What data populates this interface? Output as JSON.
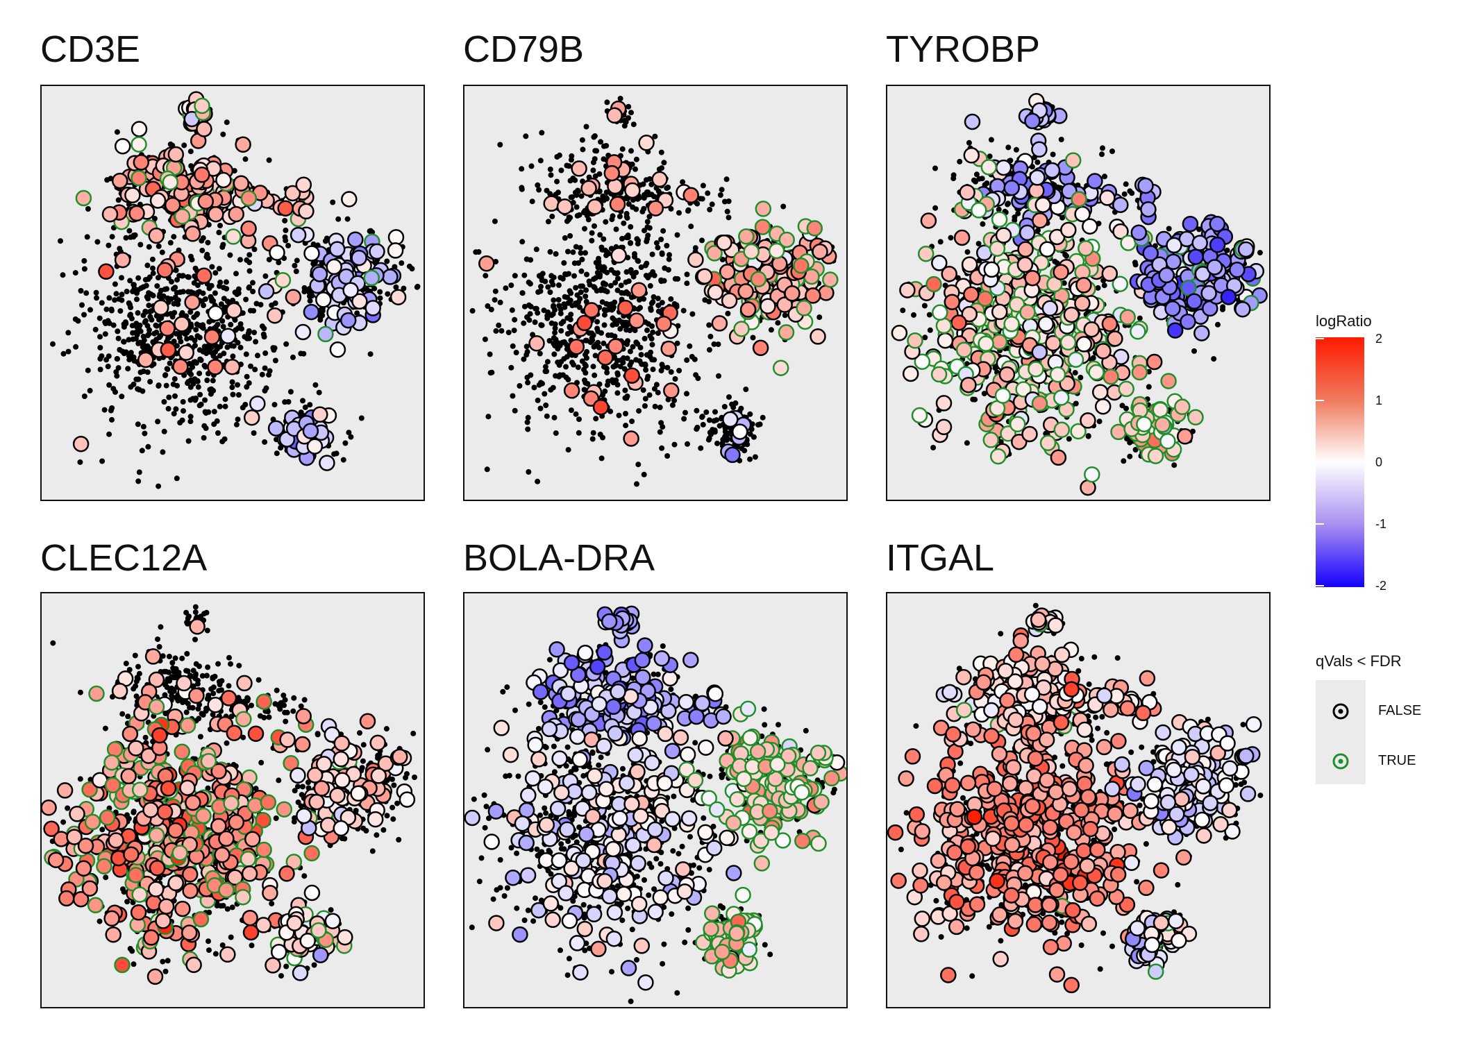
{
  "chart_data": [
    {
      "type": "scatter",
      "title": "CD3E",
      "colors": {
        "true_ring": "#1e8f2a",
        "false_ring": "#000000"
      },
      "clusters": [
        {
          "name": "top",
          "logRatio_mean": 0.6,
          "expressed": "high",
          "qTrue_fraction": 0.15
        },
        {
          "name": "left",
          "logRatio_mean": 0.7,
          "expressed": "sparse",
          "qTrue_fraction": 0.0
        },
        {
          "name": "right",
          "logRatio_mean": -0.4,
          "expressed": "medium",
          "qTrue_fraction": 0.05
        },
        {
          "name": "bottom-right",
          "logRatio_mean": -0.5,
          "expressed": "medium",
          "qTrue_fraction": 0.0
        }
      ]
    },
    {
      "type": "scatter",
      "title": "CD79B",
      "clusters": [
        {
          "name": "top",
          "logRatio_mean": 0.6,
          "expressed": "sparse",
          "qTrue_fraction": 0.0
        },
        {
          "name": "left",
          "logRatio_mean": 1.1,
          "expressed": "sparse",
          "qTrue_fraction": 0.0
        },
        {
          "name": "right",
          "logRatio_mean": 0.7,
          "expressed": "high",
          "qTrue_fraction": 0.4
        },
        {
          "name": "bottom-right",
          "logRatio_mean": -0.3,
          "expressed": "sparse",
          "qTrue_fraction": 0.0
        }
      ]
    },
    {
      "type": "scatter",
      "title": "TYROBP",
      "clusters": [
        {
          "name": "top",
          "logRatio_mean": -0.6,
          "expressed": "medium",
          "qTrue_fraction": 0.0
        },
        {
          "name": "left",
          "logRatio_mean": 0.4,
          "expressed": "high",
          "qTrue_fraction": 0.5
        },
        {
          "name": "right",
          "logRatio_mean": -0.8,
          "expressed": "high",
          "qTrue_fraction": 0.05
        },
        {
          "name": "bottom-right",
          "logRatio_mean": 0.5,
          "expressed": "high",
          "qTrue_fraction": 0.9
        }
      ]
    },
    {
      "type": "scatter",
      "title": "CLEC12A",
      "clusters": [
        {
          "name": "top",
          "logRatio_mean": 0.3,
          "expressed": "sparse",
          "qTrue_fraction": 0.0
        },
        {
          "name": "left",
          "logRatio_mean": 1.0,
          "expressed": "high",
          "qTrue_fraction": 0.4
        },
        {
          "name": "right",
          "logRatio_mean": 0.3,
          "expressed": "medium",
          "qTrue_fraction": 0.1
        },
        {
          "name": "bottom-right",
          "logRatio_mean": 0.3,
          "expressed": "high",
          "qTrue_fraction": 0.3
        }
      ]
    },
    {
      "type": "scatter",
      "title": "BOLA-DRA",
      "clusters": [
        {
          "name": "top",
          "logRatio_mean": -0.7,
          "expressed": "high",
          "qTrue_fraction": 0.0
        },
        {
          "name": "left",
          "logRatio_mean": -0.1,
          "expressed": "medium",
          "qTrue_fraction": 0.0
        },
        {
          "name": "right",
          "logRatio_mean": 0.5,
          "expressed": "high",
          "qTrue_fraction": 0.95
        },
        {
          "name": "bottom-right",
          "logRatio_mean": 0.5,
          "expressed": "high",
          "qTrue_fraction": 0.95
        }
      ]
    },
    {
      "type": "scatter",
      "title": "ITGAL",
      "clusters": [
        {
          "name": "top",
          "logRatio_mean": 0.4,
          "expressed": "high",
          "qTrue_fraction": 0.05
        },
        {
          "name": "left",
          "logRatio_mean": 1.0,
          "expressed": "high",
          "qTrue_fraction": 0.01
        },
        {
          "name": "right",
          "logRatio_mean": -0.1,
          "expressed": "high",
          "qTrue_fraction": 0.0
        },
        {
          "name": "bottom-right",
          "logRatio_mean": -0.2,
          "expressed": "high",
          "qTrue_fraction": 0.05
        }
      ]
    }
  ],
  "legend": {
    "color_title": "logRatio",
    "color_ticks": [
      "2",
      "1",
      "0",
      "-1",
      "-2"
    ],
    "color_range": [
      -2,
      2
    ],
    "colors": {
      "high": "#ff1a00",
      "mid": "#ffffff",
      "low": "#1400ff"
    },
    "q_title": "qVals < FDR",
    "q_entries": [
      {
        "label": "FALSE",
        "color": "#000000"
      },
      {
        "label": "TRUE",
        "color": "#1e8f2a"
      }
    ]
  }
}
